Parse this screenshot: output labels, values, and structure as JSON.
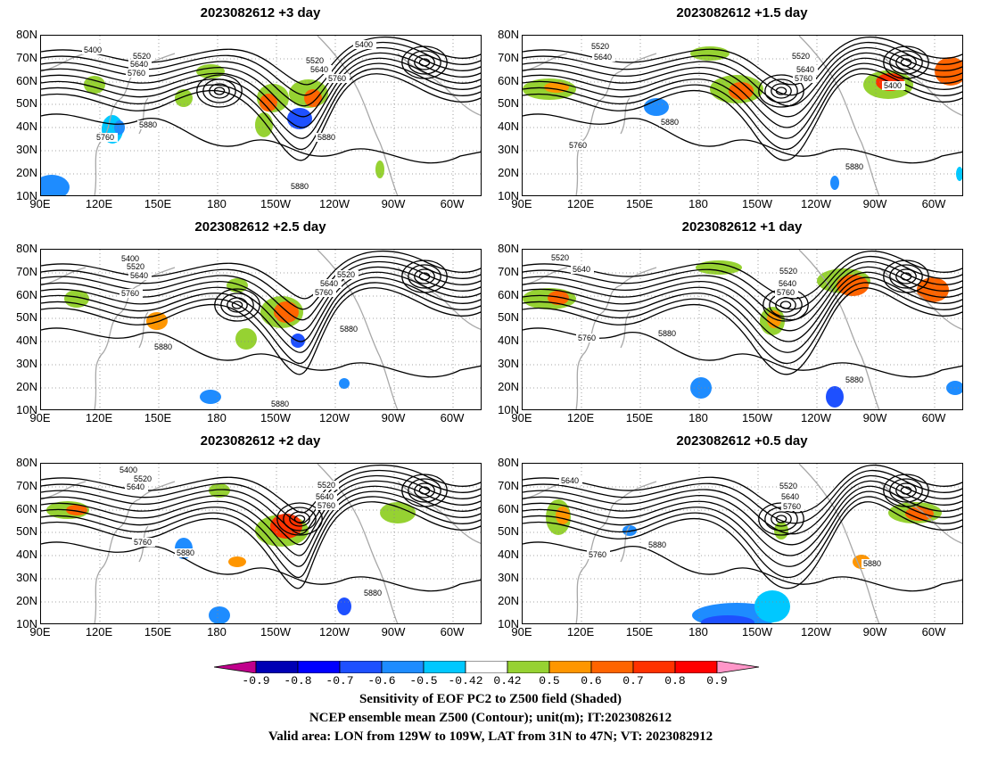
{
  "panels": [
    {
      "title": "2023082612 +3 day",
      "contour_labels": [
        "5400",
        "5520",
        "5640",
        "5760",
        "5400",
        "5520",
        "5640",
        "5760",
        "5880",
        "5760",
        "5880",
        "5880"
      ]
    },
    {
      "title": "2023082612 +1.5 day",
      "contour_labels": [
        "5520",
        "5640",
        "5520",
        "5640",
        "5760",
        "5400",
        "5880",
        "5760",
        "5880"
      ]
    },
    {
      "title": "2023082612 +2.5 day",
      "contour_labels": [
        "5400",
        "5520",
        "5640",
        "5760",
        "5520",
        "5640",
        "5760",
        "5880",
        "5880",
        "5880"
      ]
    },
    {
      "title": "2023082612 +1 day",
      "contour_labels": [
        "5520",
        "5640",
        "5520",
        "5640",
        "5760",
        "5880",
        "5760",
        "5880"
      ]
    },
    {
      "title": "2023082612 +2 day",
      "contour_labels": [
        "5400",
        "5520",
        "5640",
        "5520",
        "5640",
        "5760",
        "5760",
        "5880",
        "5880"
      ]
    },
    {
      "title": "2023082612 +0.5 day",
      "contour_labels": [
        "5640",
        "5520",
        "5640",
        "5760",
        "5880",
        "5760",
        "5880"
      ]
    }
  ],
  "lat_ticks": [
    "80N",
    "70N",
    "60N",
    "50N",
    "40N",
    "30N",
    "20N",
    "10N"
  ],
  "lon_ticks": [
    "90E",
    "120E",
    "150E",
    "180",
    "150W",
    "120W",
    "90W",
    "60W"
  ],
  "colorbar": {
    "labels": [
      "-0.9",
      "-0.8",
      "-0.7",
      "-0.6",
      "-0.5",
      "-0.42",
      "0.42",
      "0.5",
      "0.6",
      "0.7",
      "0.8",
      "0.9"
    ],
    "colors": [
      "#c0008c",
      "#0000b4",
      "#0000ff",
      "#1e50ff",
      "#1e8cff",
      "#00c8ff",
      "#ffffff",
      "#96d232",
      "#ff9600",
      "#ff6400",
      "#ff3200",
      "#ff0000",
      "#ff96c8"
    ]
  },
  "caption": {
    "line1": "Sensitivity of EOF PC2 to Z500 field (Shaded)",
    "line2": "NCEP ensemble mean Z500 (Contour); unit(m); IT:2023082612",
    "line3": "Valid area: LON from 129W to 109W, LAT from 31N to 47N; VT: 2023082912"
  }
}
